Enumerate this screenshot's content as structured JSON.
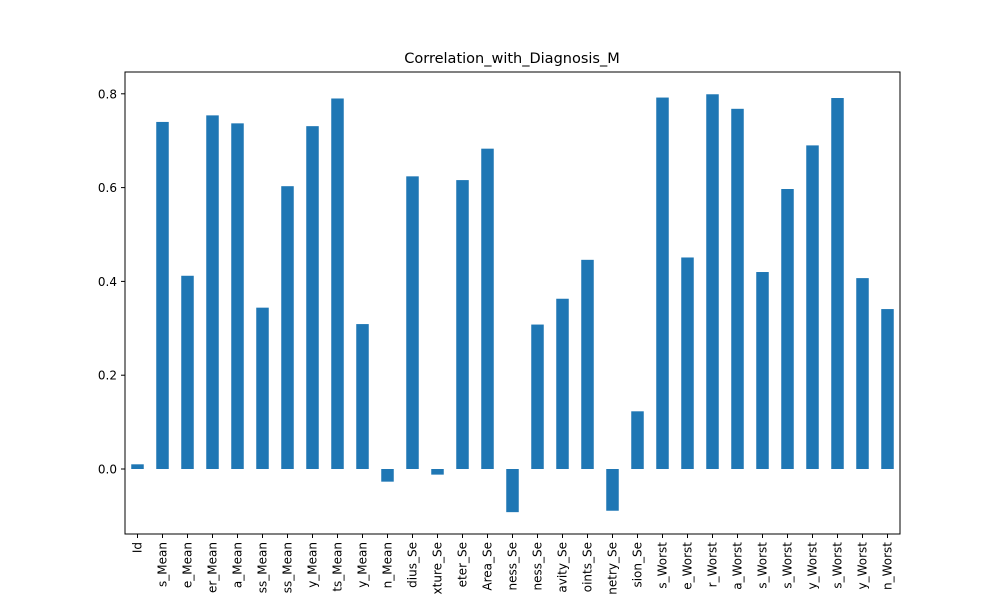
{
  "chart_data": {
    "type": "bar",
    "title": "Correlation_with_Diagnosis_M",
    "xlabel": "",
    "ylabel": "",
    "ylim": [
      -0.14,
      0.84
    ],
    "yticks": [
      "0.0",
      "0.2",
      "0.4",
      "0.6",
      "0.8"
    ],
    "grid": false,
    "bar_color": "#1f77b4",
    "categories": [
      "Id",
      "s_Mean",
      "e_Mean",
      "er_Mean",
      "a_Mean",
      "ss_Mean",
      "ss_Mean",
      "y_Mean",
      "ts_Mean",
      "y_Mean",
      "n_Mean",
      "dius_Se",
      "xture_Se",
      "eter_Se",
      "Area_Se",
      "ness_Se",
      "ness_Se",
      "avity_Se",
      "oints_Se",
      "netry_Se",
      "sion_Se",
      "s_Worst",
      "e_Worst",
      "r_Worst",
      "a_Worst",
      "s_Worst",
      "s_Worst",
      "y_Worst",
      "s_Worst",
      "y_Worst",
      "n_Worst"
    ],
    "values": [
      0.01,
      0.74,
      0.412,
      0.754,
      0.737,
      0.344,
      0.603,
      0.731,
      0.79,
      0.309,
      -0.027,
      0.624,
      -0.012,
      0.616,
      0.683,
      -0.092,
      0.308,
      0.363,
      0.446,
      -0.089,
      0.123,
      0.792,
      0.451,
      0.799,
      0.768,
      0.42,
      0.597,
      0.69,
      0.791,
      0.407,
      0.341
    ]
  }
}
